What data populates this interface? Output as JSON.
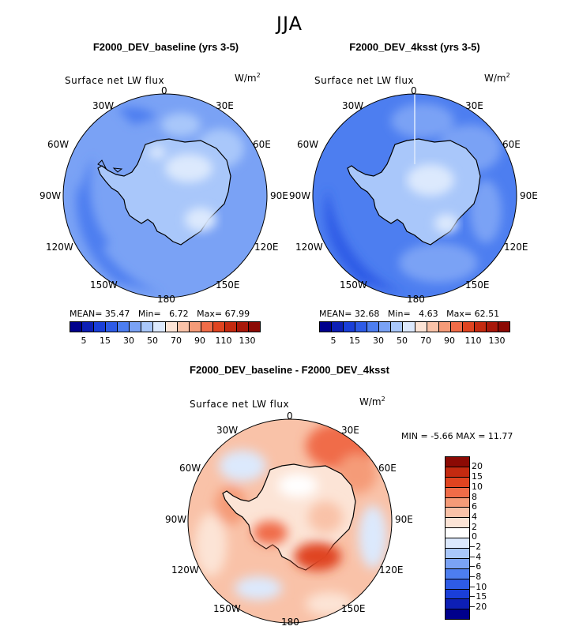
{
  "season": "JJA",
  "colors": {
    "abs_scale": [
      "#00008c",
      "#0d1fb5",
      "#1a3fd9",
      "#2e5be6",
      "#4d7ef0",
      "#7aa2f5",
      "#a9c7fa",
      "#dce9fd",
      "#fce4d6",
      "#f9c2a8",
      "#f59b78",
      "#f06c48",
      "#e04420",
      "#c42a10",
      "#a8180a",
      "#8c0a04"
    ],
    "diff_scale": [
      "#8c0a04",
      "#c42a10",
      "#e04420",
      "#f06c48",
      "#f59b78",
      "#f9c2a8",
      "#fce4d6",
      "#ffffff",
      "#dce9fd",
      "#a9c7fa",
      "#7aa2f5",
      "#4d7ef0",
      "#2e5be6",
      "#1a3fd9",
      "#0d1fb5",
      "#00008c"
    ]
  },
  "panels": [
    {
      "title": "F2000_DEV_baseline (yrs 3-5)",
      "variable": "Surface net LW flux",
      "units": "W/m",
      "units_exp": "2",
      "mean_label": "MEAN=",
      "mean": "35.47",
      "min_label": "Min=",
      "min": "6.72",
      "max_label": "Max=",
      "max": "67.99",
      "colorbar_ticks": [
        "5",
        "15",
        "30",
        "50",
        "70",
        "90",
        "110",
        "130"
      ]
    },
    {
      "title": "F2000_DEV_4ksst (yrs 3-5)",
      "variable": "Surface net LW flux",
      "units": "W/m",
      "units_exp": "2",
      "mean_label": "MEAN=",
      "mean": "32.68",
      "min_label": "Min=",
      "min": "4.63",
      "max_label": "Max=",
      "max": "62.51",
      "colorbar_ticks": [
        "5",
        "15",
        "30",
        "50",
        "70",
        "90",
        "110",
        "130"
      ]
    }
  ],
  "diff": {
    "title": "F2000_DEV_baseline - F2000_DEV_4ksst",
    "variable": "Surface net LW flux",
    "units": "W/m",
    "units_exp": "2",
    "min_label": "MIN =",
    "min": "-5.66",
    "max_label": "MAX =",
    "max": "11.77",
    "colorbar_ticks": [
      "20",
      "15",
      "10",
      "8",
      "6",
      "4",
      "2",
      "0",
      "−2",
      "−4",
      "−6",
      "−8",
      "−10",
      "−15",
      "−20"
    ]
  },
  "lon_labels": {
    "deg0": "0",
    "deg30e": "30E",
    "deg60e": "60E",
    "deg90e": "90E",
    "deg120e": "120E",
    "deg150e": "150E",
    "deg180": "180",
    "deg150w": "150W",
    "deg120w": "120W",
    "deg90w": "90W",
    "deg60w": "60W",
    "deg30w": "30W"
  }
}
